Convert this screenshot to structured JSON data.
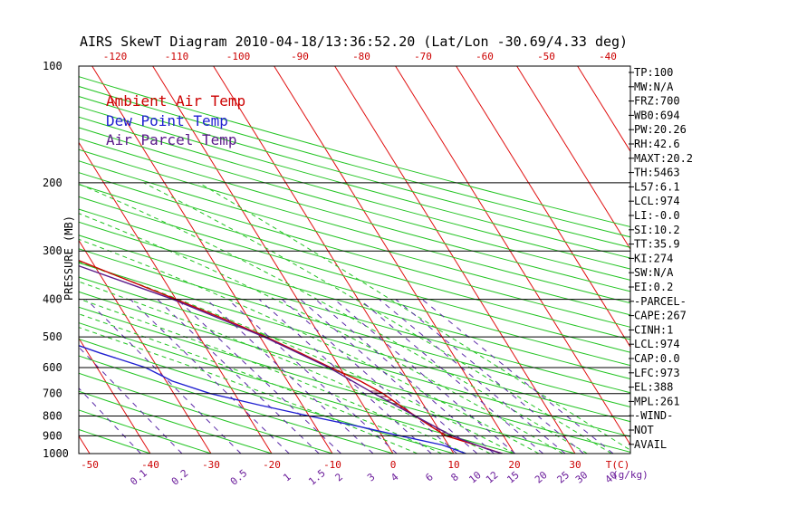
{
  "chart_data": {
    "type": "skewt",
    "title": "AIRS SkewT Diagram 2010-04-18/13:36:52.20 (Lat/Lon -30.69/4.33 deg)",
    "ylabel": "PRESSURE (MB)",
    "pressure_ticks": [
      100,
      200,
      300,
      400,
      500,
      600,
      700,
      800,
      900,
      1000
    ],
    "top_temp_ticks": [
      -120,
      -110,
      -100,
      -90,
      -80,
      -70,
      -60,
      -50,
      -40
    ],
    "bottom_temp_ticks": [
      -50,
      -40,
      -30,
      -20,
      -10,
      0,
      10,
      20,
      30
    ],
    "bottom_temp_unit": "T(C)",
    "mixing_ratio_ticks": [
      "0.1",
      "0.2",
      "0.5",
      "1",
      "1.5",
      "2",
      "3",
      "4",
      "6",
      "8",
      "10",
      "12",
      "15",
      "20",
      "25",
      "30",
      "40"
    ],
    "mixing_ratio_unit": "(g/kg)",
    "legend": [
      {
        "label": "Ambient Air Temp",
        "color": "#cc0000"
      },
      {
        "label": "Dew Point Temp",
        "color": "#1f1fd1"
      },
      {
        "label": "Air Parcel Temp",
        "color": "#5b1a8a"
      }
    ],
    "series": [
      {
        "name": "Ambient Air Temp",
        "color": "#cc0000",
        "points": [
          [
            1000,
            18
          ],
          [
            950,
            14.5
          ],
          [
            900,
            10.5
          ],
          [
            850,
            9
          ],
          [
            800,
            7.5
          ],
          [
            750,
            6
          ],
          [
            700,
            4.5
          ],
          [
            650,
            2
          ],
          [
            600,
            -1.5
          ],
          [
            550,
            -5
          ],
          [
            500,
            -9
          ],
          [
            450,
            -14
          ],
          [
            400,
            -20
          ],
          [
            350,
            -27
          ],
          [
            300,
            -35
          ],
          [
            275,
            -41
          ],
          [
            250,
            -48
          ],
          [
            225,
            -50
          ],
          [
            200,
            -53
          ],
          [
            175,
            -56
          ],
          [
            150,
            -60
          ],
          [
            125,
            -63
          ],
          [
            100,
            -67
          ]
        ]
      },
      {
        "name": "Dew Point Temp",
        "color": "#1f1fd1",
        "points": [
          [
            1000,
            12
          ],
          [
            950,
            9
          ],
          [
            900,
            3
          ],
          [
            850,
            -3
          ],
          [
            800,
            -10
          ],
          [
            750,
            -17
          ],
          [
            700,
            -24
          ],
          [
            650,
            -29
          ],
          [
            600,
            -32
          ],
          [
            550,
            -38
          ],
          [
            500,
            -44
          ],
          [
            450,
            -50
          ],
          [
            400,
            -56
          ],
          [
            350,
            -63
          ],
          [
            300,
            -70
          ],
          [
            250,
            -78
          ],
          [
            200,
            -87
          ],
          [
            175,
            -94
          ],
          [
            150,
            -101
          ],
          [
            125,
            -108
          ],
          [
            100,
            -116
          ]
        ]
      },
      {
        "name": "Air Parcel Temp",
        "color": "#5b1a8a",
        "points": [
          [
            1000,
            18
          ],
          [
            974,
            16
          ],
          [
            900,
            11.5
          ],
          [
            800,
            7.5
          ],
          [
            700,
            3
          ],
          [
            600,
            -1.8
          ],
          [
            500,
            -9.3
          ],
          [
            400,
            -20.5
          ],
          [
            300,
            -38
          ],
          [
            250,
            -50
          ],
          [
            200,
            -63
          ],
          [
            150,
            -83
          ],
          [
            100,
            -113
          ]
        ]
      }
    ],
    "stats": [
      "TP:100",
      "MW:N/A",
      "FRZ:700",
      "WB0:694",
      "PW:20.26",
      "RH:42.6",
      "MAXT:20.2",
      "TH:5463",
      "L57:6.1",
      "LCL:974",
      "LI:-0.0",
      "SI:10.2",
      "TT:35.9",
      "KI:274",
      "SW:N/A",
      "EI:0.2",
      "-PARCEL-",
      "CAPE:267",
      "CINH:1",
      "LCL:974",
      "CAP:0.0",
      "LFC:973",
      "EL:388",
      "MPL:261",
      "-WIND-",
      "NOT",
      "AVAIL"
    ]
  }
}
